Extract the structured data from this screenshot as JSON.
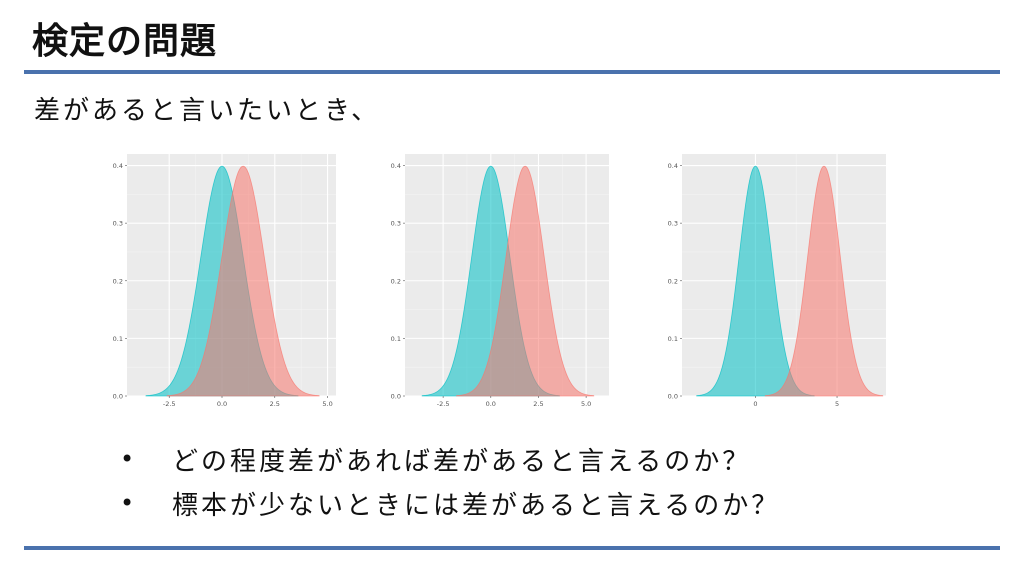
{
  "slide": {
    "title": "検定の問題",
    "subtitle": "差があると言いたいとき、",
    "bullets": [
      "どの程度差があれば差があると言えるのか？",
      "標本が少ないときには差があると言えるのか？"
    ]
  },
  "colors": {
    "accent_rule": "#4a72ad",
    "series_a": "#00BFC4",
    "series_b": "#F8766D",
    "panel_bg": "#EBEBEB"
  },
  "chart_data": [
    {
      "type": "area",
      "series": [
        {
          "distribution": "normal",
          "mean": 0.0,
          "sd": 1.0,
          "color": "#00BFC4"
        },
        {
          "distribution": "normal",
          "mean": 1.0,
          "sd": 1.0,
          "color": "#F8766D"
        }
      ],
      "xlim": [
        -4.5,
        5.4
      ],
      "ylim": [
        0,
        0.42
      ],
      "xticks": [
        "-2.5",
        "0.0",
        "2.5",
        "5.0"
      ],
      "xtick_values": [
        -2.5,
        0.0,
        2.5,
        5.0
      ],
      "yticks": [
        "0.0",
        "0.1",
        "0.2",
        "0.3",
        "0.4"
      ],
      "ytick_values": [
        0.0,
        0.1,
        0.2,
        0.3,
        0.4
      ],
      "grid": true
    },
    {
      "type": "area",
      "series": [
        {
          "distribution": "normal",
          "mean": 0.0,
          "sd": 1.0,
          "color": "#00BFC4"
        },
        {
          "distribution": "normal",
          "mean": 1.8,
          "sd": 1.0,
          "color": "#F8766D"
        }
      ],
      "xlim": [
        -4.5,
        6.2
      ],
      "ylim": [
        0,
        0.42
      ],
      "xticks": [
        "-2.5",
        "0.0",
        "2.5",
        "5.0"
      ],
      "xtick_values": [
        -2.5,
        0.0,
        2.5,
        5.0
      ],
      "yticks": [
        "0.0",
        "0.1",
        "0.2",
        "0.3",
        "0.4"
      ],
      "ytick_values": [
        0.0,
        0.1,
        0.2,
        0.3,
        0.4
      ],
      "grid": true
    },
    {
      "type": "area",
      "series": [
        {
          "distribution": "normal",
          "mean": 0.0,
          "sd": 1.0,
          "color": "#00BFC4"
        },
        {
          "distribution": "normal",
          "mean": 4.2,
          "sd": 1.0,
          "color": "#F8766D"
        }
      ],
      "xlim": [
        -4.5,
        8.0
      ],
      "ylim": [
        0,
        0.42
      ],
      "xticks": [
        "0",
        "5"
      ],
      "xtick_values": [
        0,
        5
      ],
      "yticks": [
        "0.0",
        "0.1",
        "0.2",
        "0.3",
        "0.4"
      ],
      "ytick_values": [
        0.0,
        0.1,
        0.2,
        0.3,
        0.4
      ],
      "grid": true
    }
  ]
}
